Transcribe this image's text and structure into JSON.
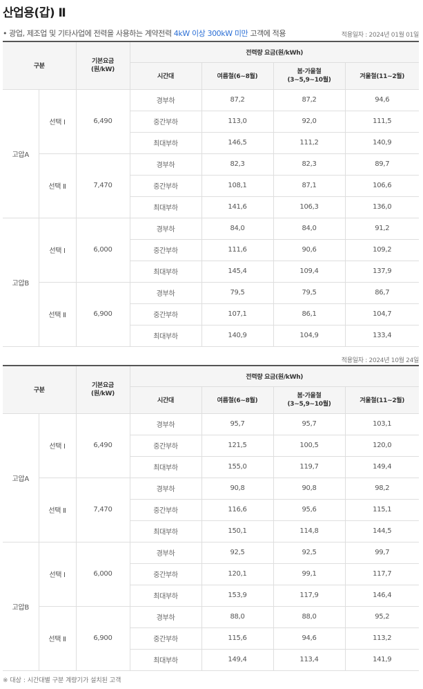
{
  "title": "산업용(갑) Ⅱ",
  "description": {
    "prefix": "• 광업, 제조업 및 기타사업에 전력을 사용하는 계약전력 ",
    "highlight": "4kW 이상 300kW 미만",
    "suffix": " 고객에 적용"
  },
  "table_headers": {
    "category": "구분",
    "base_fee_line1": "기본요금",
    "base_fee_line2": "(원/kW)",
    "energy_fee": "전력량 요금(원/kWh)",
    "time_band": "시간대",
    "summer": "여름철(6~8월)",
    "spring_fall_line1": "봄·가을철",
    "spring_fall_line2": "(3~5,9~10월)",
    "winter": "겨울철(11~2월)"
  },
  "tables": [
    {
      "effective_date": "적용일자 : 2024년 01월 01일",
      "groups": [
        {
          "voltage": "고압A",
          "options": [
            {
              "name": "선택 Ⅰ",
              "base_fee": "6,490",
              "rows": [
                {
                  "time": "경부하",
                  "summer": "87,2",
                  "spring_fall": "87,2",
                  "winter": "94,6"
                },
                {
                  "time": "중간부하",
                  "summer": "113,0",
                  "spring_fall": "92,0",
                  "winter": "111,5"
                },
                {
                  "time": "최대부하",
                  "summer": "146,5",
                  "spring_fall": "111,2",
                  "winter": "140,9"
                }
              ]
            },
            {
              "name": "선택 Ⅱ",
              "base_fee": "7,470",
              "rows": [
                {
                  "time": "경부하",
                  "summer": "82,3",
                  "spring_fall": "82,3",
                  "winter": "89,7"
                },
                {
                  "time": "중간부하",
                  "summer": "108,1",
                  "spring_fall": "87,1",
                  "winter": "106,6"
                },
                {
                  "time": "최대부하",
                  "summer": "141,6",
                  "spring_fall": "106,3",
                  "winter": "136,0"
                }
              ]
            }
          ]
        },
        {
          "voltage": "고압B",
          "options": [
            {
              "name": "선택 Ⅰ",
              "base_fee": "6,000",
              "rows": [
                {
                  "time": "경부하",
                  "summer": "84,0",
                  "spring_fall": "84,0",
                  "winter": "91,2"
                },
                {
                  "time": "중간부하",
                  "summer": "111,6",
                  "spring_fall": "90,6",
                  "winter": "109,2"
                },
                {
                  "time": "최대부하",
                  "summer": "145,4",
                  "spring_fall": "109,4",
                  "winter": "137,9"
                }
              ]
            },
            {
              "name": "선택 Ⅱ",
              "base_fee": "6,900",
              "rows": [
                {
                  "time": "경부하",
                  "summer": "79,5",
                  "spring_fall": "79,5",
                  "winter": "86,7"
                },
                {
                  "time": "중간부하",
                  "summer": "107,1",
                  "spring_fall": "86,1",
                  "winter": "104,7"
                },
                {
                  "time": "최대부하",
                  "summer": "140,9",
                  "spring_fall": "104,9",
                  "winter": "133,4"
                }
              ]
            }
          ]
        }
      ]
    },
    {
      "effective_date": "적용일자 : 2024년 10월 24일",
      "groups": [
        {
          "voltage": "고압A",
          "options": [
            {
              "name": "선택 Ⅰ",
              "base_fee": "6,490",
              "rows": [
                {
                  "time": "경부하",
                  "summer": "95,7",
                  "spring_fall": "95,7",
                  "winter": "103,1"
                },
                {
                  "time": "중간부하",
                  "summer": "121,5",
                  "spring_fall": "100,5",
                  "winter": "120,0"
                },
                {
                  "time": "최대부하",
                  "summer": "155,0",
                  "spring_fall": "119,7",
                  "winter": "149,4"
                }
              ]
            },
            {
              "name": "선택 Ⅱ",
              "base_fee": "7,470",
              "rows": [
                {
                  "time": "경부하",
                  "summer": "90,8",
                  "spring_fall": "90,8",
                  "winter": "98,2"
                },
                {
                  "time": "중간부하",
                  "summer": "116,6",
                  "spring_fall": "95,6",
                  "winter": "115,1"
                },
                {
                  "time": "최대부하",
                  "summer": "150,1",
                  "spring_fall": "114,8",
                  "winter": "144,5"
                }
              ]
            }
          ]
        },
        {
          "voltage": "고압B",
          "options": [
            {
              "name": "선택 Ⅰ",
              "base_fee": "6,000",
              "rows": [
                {
                  "time": "경부하",
                  "summer": "92,5",
                  "spring_fall": "92,5",
                  "winter": "99,7"
                },
                {
                  "time": "중간부하",
                  "summer": "120,1",
                  "spring_fall": "99,1",
                  "winter": "117,7"
                },
                {
                  "time": "최대부하",
                  "summer": "153,9",
                  "spring_fall": "117,9",
                  "winter": "146,4"
                }
              ]
            },
            {
              "name": "선택 Ⅱ",
              "base_fee": "6,900",
              "rows": [
                {
                  "time": "경부하",
                  "summer": "88,0",
                  "spring_fall": "88,0",
                  "winter": "95,2"
                },
                {
                  "time": "중간부하",
                  "summer": "115,6",
                  "spring_fall": "94,6",
                  "winter": "113,2"
                },
                {
                  "time": "최대부하",
                  "summer": "149,4",
                  "spring_fall": "113,4",
                  "winter": "141,9"
                }
              ]
            }
          ]
        }
      ]
    }
  ],
  "footnote": "※ 대상 : 시간대별 구분 계량기가 설치된 고객"
}
